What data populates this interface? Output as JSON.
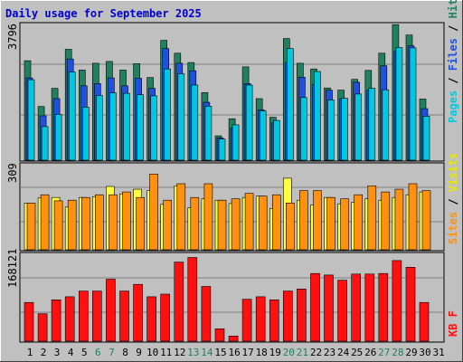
{
  "title": "Daily usage for September 2025",
  "colors": {
    "background": "#c0c0c0",
    "title": "#0000d0",
    "pages": "#00c8e0",
    "files": "#2050e0",
    "hits": "#208060",
    "visits": "#ffff40",
    "sites": "#ff9010",
    "kb": "#ff1010",
    "weekend_day": "#208060"
  },
  "chart_data": [
    {
      "type": "bar",
      "title": "Daily usage for September 2025",
      "ylabel_parts": [
        "Pages",
        "Files",
        "Hits"
      ],
      "y_max_label": "3796",
      "ylim": [
        0,
        3796
      ],
      "grid": true,
      "categories": [
        "1",
        "2",
        "3",
        "4",
        "5",
        "6",
        "7",
        "8",
        "9",
        "10",
        "11",
        "12",
        "13",
        "14",
        "15",
        "16",
        "17",
        "18",
        "19",
        "20",
        "21",
        "22",
        "23",
        "24",
        "25",
        "26",
        "27",
        "28",
        "29",
        "30",
        "31"
      ],
      "series": [
        {
          "name": "Hits",
          "values": [
            2780,
            1500,
            2010,
            3100,
            2520,
            2710,
            2760,
            2520,
            2700,
            2310,
            3350,
            2990,
            2730,
            1890,
            680,
            1160,
            2610,
            1720,
            1200,
            3400,
            2710,
            2550,
            2020,
            1960,
            2260,
            2510,
            2990,
            3790,
            3500,
            1710,
            0
          ]
        },
        {
          "name": "Files",
          "values": [
            2300,
            1240,
            1720,
            2830,
            2080,
            2140,
            2300,
            2080,
            2290,
            2010,
            3120,
            2710,
            2500,
            1620,
            620,
            900,
            2140,
            1410,
            1040,
            2730,
            2320,
            2120,
            1960,
            1720,
            2180,
            1960,
            2640,
            3040,
            3200,
            1440,
            0
          ]
        },
        {
          "name": "Pages",
          "values": [
            2250,
            940,
            1280,
            2470,
            1480,
            1810,
            1880,
            1870,
            1830,
            1800,
            2550,
            2420,
            2100,
            1510,
            590,
            990,
            2100,
            1380,
            1110,
            3120,
            1750,
            2480,
            1680,
            1730,
            1850,
            2010,
            1970,
            3150,
            3140,
            1230,
            0
          ]
        }
      ]
    },
    {
      "type": "bar",
      "ylabel_parts": [
        "Sites",
        "Visits"
      ],
      "y_max_label": "309",
      "ylim": [
        0,
        309
      ],
      "grid": true,
      "categories": [
        "1",
        "2",
        "3",
        "4",
        "5",
        "6",
        "7",
        "8",
        "9",
        "10",
        "11",
        "12",
        "13",
        "14",
        "15",
        "16",
        "17",
        "18",
        "19",
        "20",
        "21",
        "22",
        "23",
        "24",
        "25",
        "26",
        "27",
        "28",
        "29",
        "30",
        "31"
      ],
      "series": [
        {
          "name": "Visits",
          "values": [
            170,
            188,
            190,
            155,
            190,
            193,
            230,
            203,
            220,
            215,
            165,
            232,
            153,
            185,
            180,
            168,
            190,
            195,
            150,
            260,
            180,
            163,
            190,
            167,
            173,
            185,
            180,
            190,
            200,
            210,
            0
          ]
        },
        {
          "name": "Sites",
          "values": [
            170,
            200,
            178,
            180,
            190,
            200,
            200,
            210,
            190,
            275,
            180,
            240,
            190,
            240,
            180,
            185,
            205,
            195,
            200,
            170,
            215,
            215,
            190,
            185,
            200,
            232,
            210,
            220,
            240,
            215,
            0
          ]
        }
      ]
    },
    {
      "type": "bar",
      "ylabel": "KB F",
      "y_max_label": "168121",
      "ylim": [
        0,
        168121
      ],
      "grid": true,
      "categories": [
        "1",
        "2",
        "3",
        "4",
        "5",
        "6",
        "7",
        "8",
        "9",
        "10",
        "11",
        "12",
        "13",
        "14",
        "15",
        "16",
        "17",
        "18",
        "19",
        "20",
        "21",
        "22",
        "23",
        "24",
        "25",
        "26",
        "27",
        "28",
        "29",
        "30",
        "31"
      ],
      "series": [
        {
          "name": "KB F",
          "values": [
            75000,
            53000,
            80000,
            86000,
            97000,
            97000,
            120000,
            97000,
            110000,
            86000,
            91000,
            153000,
            162000,
            106000,
            24000,
            10000,
            81000,
            86000,
            80000,
            97000,
            101000,
            131000,
            128000,
            118000,
            130000,
            130000,
            131000,
            156000,
            143000,
            75000,
            0
          ]
        }
      ]
    }
  ],
  "days": [
    {
      "label": "1",
      "weekend": false
    },
    {
      "label": "2",
      "weekend": false
    },
    {
      "label": "3",
      "weekend": false
    },
    {
      "label": "4",
      "weekend": false
    },
    {
      "label": "5",
      "weekend": false
    },
    {
      "label": "6",
      "weekend": true
    },
    {
      "label": "7",
      "weekend": true
    },
    {
      "label": "8",
      "weekend": false
    },
    {
      "label": "9",
      "weekend": false
    },
    {
      "label": "10",
      "weekend": false
    },
    {
      "label": "11",
      "weekend": false
    },
    {
      "label": "12",
      "weekend": false
    },
    {
      "label": "13",
      "weekend": true
    },
    {
      "label": "14",
      "weekend": true
    },
    {
      "label": "15",
      "weekend": false
    },
    {
      "label": "16",
      "weekend": false
    },
    {
      "label": "17",
      "weekend": false
    },
    {
      "label": "18",
      "weekend": false
    },
    {
      "label": "19",
      "weekend": false
    },
    {
      "label": "20",
      "weekend": true
    },
    {
      "label": "21",
      "weekend": true
    },
    {
      "label": "22",
      "weekend": false
    },
    {
      "label": "23",
      "weekend": false
    },
    {
      "label": "24",
      "weekend": false
    },
    {
      "label": "25",
      "weekend": false
    },
    {
      "label": "26",
      "weekend": false
    },
    {
      "label": "27",
      "weekend": true
    },
    {
      "label": "28",
      "weekend": true
    },
    {
      "label": "29",
      "weekend": false
    },
    {
      "label": "30",
      "weekend": false
    },
    {
      "label": "31",
      "weekend": false
    }
  ]
}
